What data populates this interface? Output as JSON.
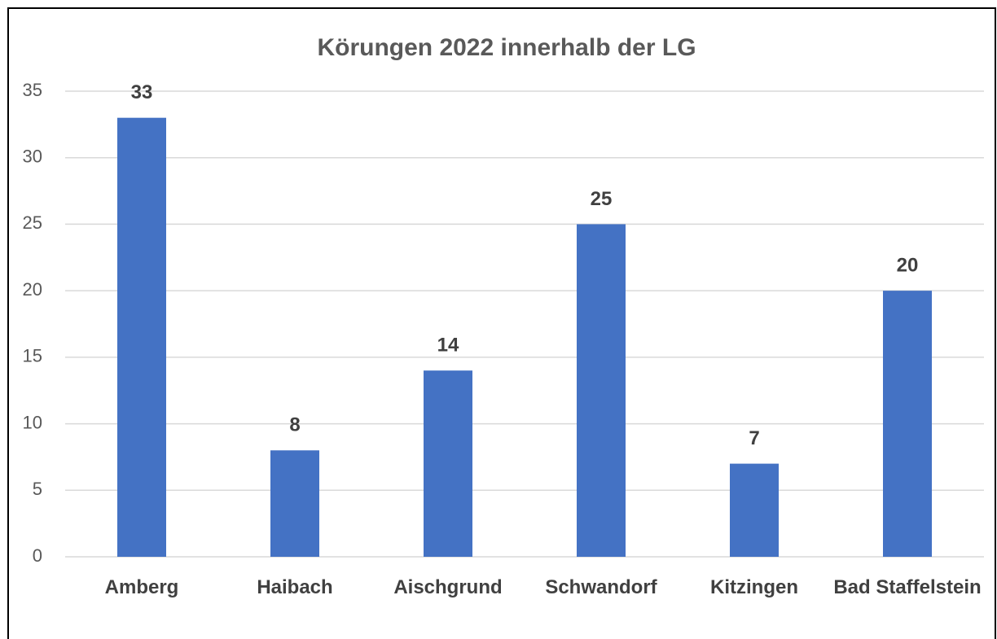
{
  "chart_data": {
    "type": "bar",
    "title": "Körungen 2022 innerhalb der LG",
    "categories": [
      "Amberg",
      "Haibach",
      "Aischgrund",
      "Schwandorf",
      "Kitzingen",
      "Bad Staffelstein"
    ],
    "values": [
      33,
      8,
      14,
      25,
      7,
      20
    ],
    "color": "#4472c4",
    "ylim": [
      0,
      35
    ],
    "yticks": [
      0,
      5,
      10,
      15,
      20,
      25,
      30,
      35
    ],
    "grid": true
  }
}
